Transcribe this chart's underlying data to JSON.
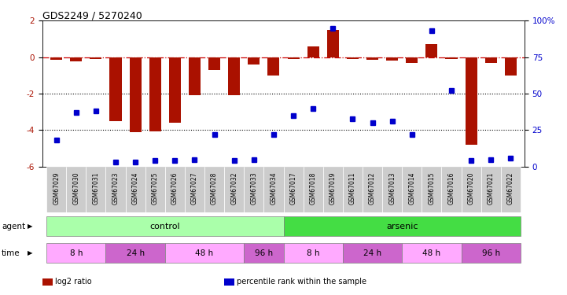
{
  "title": "GDS2249 / 5270240",
  "samples": [
    "GSM67029",
    "GSM67030",
    "GSM67031",
    "GSM67023",
    "GSM67024",
    "GSM67025",
    "GSM67026",
    "GSM67027",
    "GSM67028",
    "GSM67032",
    "GSM67033",
    "GSM67034",
    "GSM67017",
    "GSM67018",
    "GSM67019",
    "GSM67011",
    "GSM67012",
    "GSM67013",
    "GSM67014",
    "GSM67015",
    "GSM67016",
    "GSM67020",
    "GSM67021",
    "GSM67022"
  ],
  "log2_ratio": [
    -0.15,
    -0.25,
    -0.1,
    -3.5,
    -4.1,
    -4.05,
    -3.6,
    -2.1,
    -0.7,
    -2.1,
    -0.4,
    -1.0,
    -0.1,
    0.6,
    1.5,
    -0.1,
    -0.15,
    -0.2,
    -0.3,
    0.7,
    -0.1,
    -4.8,
    -0.3,
    -1.0
  ],
  "percentile": [
    18,
    37,
    38,
    3,
    3,
    4,
    4,
    5,
    22,
    4,
    5,
    22,
    35,
    40,
    95,
    33,
    30,
    31,
    22,
    93,
    52,
    4,
    5,
    6
  ],
  "bar_color": "#aa1100",
  "dot_color": "#0000cc",
  "zero_line_color": "#cc0000",
  "dotted_line_color": "#000000",
  "ylim_left": [
    -6,
    2
  ],
  "ylim_right": [
    0,
    100
  ],
  "yticks_left": [
    2,
    0,
    -2,
    -4,
    -6
  ],
  "yticks_right": [
    0,
    25,
    50,
    75,
    100
  ],
  "yticklabels_right": [
    "0",
    "25",
    "50",
    "75",
    "100%"
  ],
  "agent_groups": [
    {
      "label": "control",
      "start": 0,
      "end": 11,
      "color": "#aaffaa"
    },
    {
      "label": "arsenic",
      "start": 12,
      "end": 23,
      "color": "#44dd44"
    }
  ],
  "time_groups": [
    {
      "label": "8 h",
      "start": 0,
      "end": 2,
      "color": "#ffaaff"
    },
    {
      "label": "24 h",
      "start": 3,
      "end": 5,
      "color": "#cc66cc"
    },
    {
      "label": "48 h",
      "start": 6,
      "end": 9,
      "color": "#ffaaff"
    },
    {
      "label": "96 h",
      "start": 10,
      "end": 11,
      "color": "#cc66cc"
    },
    {
      "label": "8 h",
      "start": 12,
      "end": 14,
      "color": "#ffaaff"
    },
    {
      "label": "24 h",
      "start": 15,
      "end": 17,
      "color": "#cc66cc"
    },
    {
      "label": "48 h",
      "start": 18,
      "end": 20,
      "color": "#ffaaff"
    },
    {
      "label": "96 h",
      "start": 21,
      "end": 23,
      "color": "#cc66cc"
    }
  ],
  "legend_items": [
    {
      "label": "log2 ratio",
      "color": "#aa1100",
      "marker": "rect"
    },
    {
      "label": "percentile rank within the sample",
      "color": "#0000cc",
      "marker": "rect"
    }
  ],
  "agent_label": "agent",
  "time_label": "time",
  "background_color": "#ffffff",
  "sample_box_color": "#cccccc"
}
